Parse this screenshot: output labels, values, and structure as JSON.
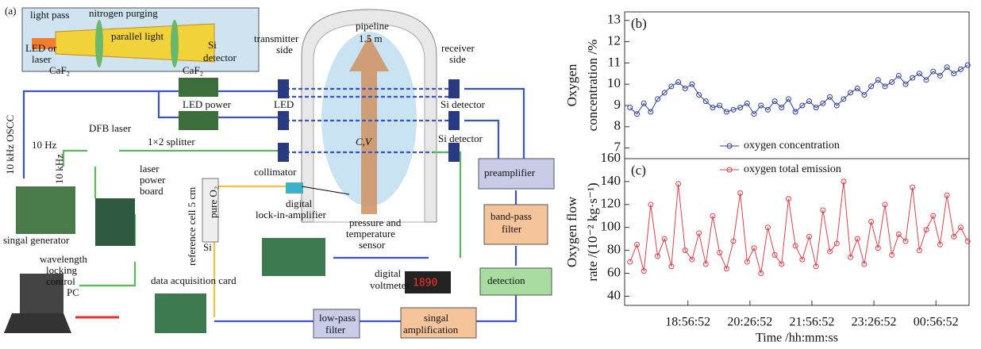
{
  "diagram": {
    "labels": [
      "(a)",
      "light pass",
      "nitrogen purging",
      "parallel light",
      "LED or",
      "laser",
      "CaF₂",
      "CaF₂",
      "Si",
      "detector",
      "transmitter",
      "side",
      "pipeline",
      "1.5 m",
      "receiver",
      "side",
      "10 kHz OSCC",
      "LED power",
      "LED",
      "Si detector",
      "DFB laser",
      "10 Hz",
      "10 kHz",
      "1×2 splitter",
      "C,V",
      "Si detector",
      "laser",
      "power",
      "board",
      "collimator",
      "preamplifier",
      "reference cell 5 cm",
      "pure O₂",
      "Si",
      "digital",
      "lock-in-amplifier",
      "pressure and",
      "temperature",
      "sensor",
      "band-pass",
      "filter",
      "singal generator",
      "wavelength",
      "locking",
      "control",
      "data acquisition card",
      "digital",
      "voltmeter",
      "1890",
      "detection",
      "PC",
      "low-pass",
      "filter",
      "singal",
      "amplification"
    ]
  },
  "chart_data": [
    {
      "type": "line",
      "panel": "(b)",
      "ylabel": [
        "Oxygen",
        "concentration /%"
      ],
      "color": "#2f3f94",
      "legend": "lower center",
      "ylim": [
        6.5,
        13.4
      ],
      "yticks": [
        7,
        8,
        9,
        10,
        11,
        12,
        13
      ],
      "xlim": [
        "17:25:00",
        "01:45:00"
      ],
      "x": [
        "17:32:52",
        "17:42:52",
        "17:52:52",
        "18:02:52",
        "18:12:52",
        "18:22:52",
        "18:32:52",
        "18:42:52",
        "18:52:52",
        "19:02:52",
        "19:12:52",
        "19:22:52",
        "19:32:52",
        "19:42:52",
        "19:52:52",
        "20:02:52",
        "20:12:52",
        "20:22:52",
        "20:32:52",
        "20:42:52",
        "20:52:52",
        "21:02:52",
        "21:12:52",
        "21:22:52",
        "21:32:52",
        "21:42:52",
        "21:52:52",
        "22:02:52",
        "22:12:52",
        "22:22:52",
        "22:32:52",
        "22:42:52",
        "22:52:52",
        "23:02:52",
        "23:12:52",
        "23:22:52",
        "23:32:52",
        "23:42:52",
        "23:52:52",
        "00:02:52",
        "00:12:52",
        "00:22:52",
        "00:32:52",
        "00:42:52",
        "00:52:52",
        "01:02:52",
        "01:12:52",
        "01:22:52",
        "01:32:52",
        "01:42:52"
      ],
      "series": [
        {
          "name": "oxygen concentration",
          "values": [
            8.9,
            8.6,
            9.1,
            8.7,
            9.3,
            9.6,
            9.9,
            10.1,
            9.8,
            10.0,
            9.5,
            9.2,
            8.9,
            9.0,
            8.7,
            8.8,
            8.9,
            9.1,
            8.6,
            9.0,
            8.8,
            9.2,
            8.9,
            9.3,
            8.7,
            9.0,
            9.2,
            8.9,
            9.1,
            9.4,
            9.0,
            9.3,
            9.6,
            9.8,
            9.5,
            9.9,
            10.2,
            9.9,
            10.1,
            10.4,
            10.0,
            10.3,
            10.5,
            10.2,
            10.6,
            10.4,
            10.8,
            10.5,
            10.7,
            10.9
          ]
        }
      ]
    },
    {
      "type": "line",
      "panel": "(c)",
      "ylabel": [
        "Oxygen flow",
        "rate /(10⁻² kg·s⁻¹)"
      ],
      "xlabel": "Time /hh:mm:ss",
      "color": "#d8434c",
      "legend": "upper center",
      "ylim": [
        32,
        160
      ],
      "yticks": [
        40,
        60,
        80,
        100,
        120,
        140,
        160
      ],
      "xlim": [
        "17:25:00",
        "01:45:00"
      ],
      "xticks": [
        "18:56:52",
        "20:26:52",
        "21:56:52",
        "23:26:52",
        "00:56:52"
      ],
      "x": [
        "17:32:52",
        "17:42:52",
        "17:52:52",
        "18:02:52",
        "18:12:52",
        "18:22:52",
        "18:32:52",
        "18:42:52",
        "18:52:52",
        "19:02:52",
        "19:12:52",
        "19:22:52",
        "19:32:52",
        "19:42:52",
        "19:52:52",
        "20:02:52",
        "20:12:52",
        "20:22:52",
        "20:32:52",
        "20:42:52",
        "20:52:52",
        "21:02:52",
        "21:12:52",
        "21:22:52",
        "21:32:52",
        "21:42:52",
        "21:52:52",
        "22:02:52",
        "22:12:52",
        "22:22:52",
        "22:32:52",
        "22:42:52",
        "22:52:52",
        "23:02:52",
        "23:12:52",
        "23:22:52",
        "23:32:52",
        "23:42:52",
        "23:52:52",
        "00:02:52",
        "00:12:52",
        "00:22:52",
        "00:32:52",
        "00:42:52",
        "00:52:52",
        "01:02:52",
        "01:12:52",
        "01:22:52",
        "01:32:52",
        "01:42:52"
      ],
      "series": [
        {
          "name": "oxygen total emission",
          "values": [
            70,
            85,
            62,
            120,
            75,
            90,
            66,
            138,
            80,
            72,
            95,
            68,
            110,
            78,
            64,
            88,
            130,
            70,
            82,
            60,
            100,
            76,
            68,
            125,
            84,
            72,
            92,
            66,
            115,
            79,
            86,
            140,
            74,
            90,
            68,
            105,
            82,
            120,
            76,
            94,
            88,
            135,
            80,
            98,
            110,
            85,
            128,
            92,
            100,
            88
          ]
        }
      ]
    }
  ]
}
